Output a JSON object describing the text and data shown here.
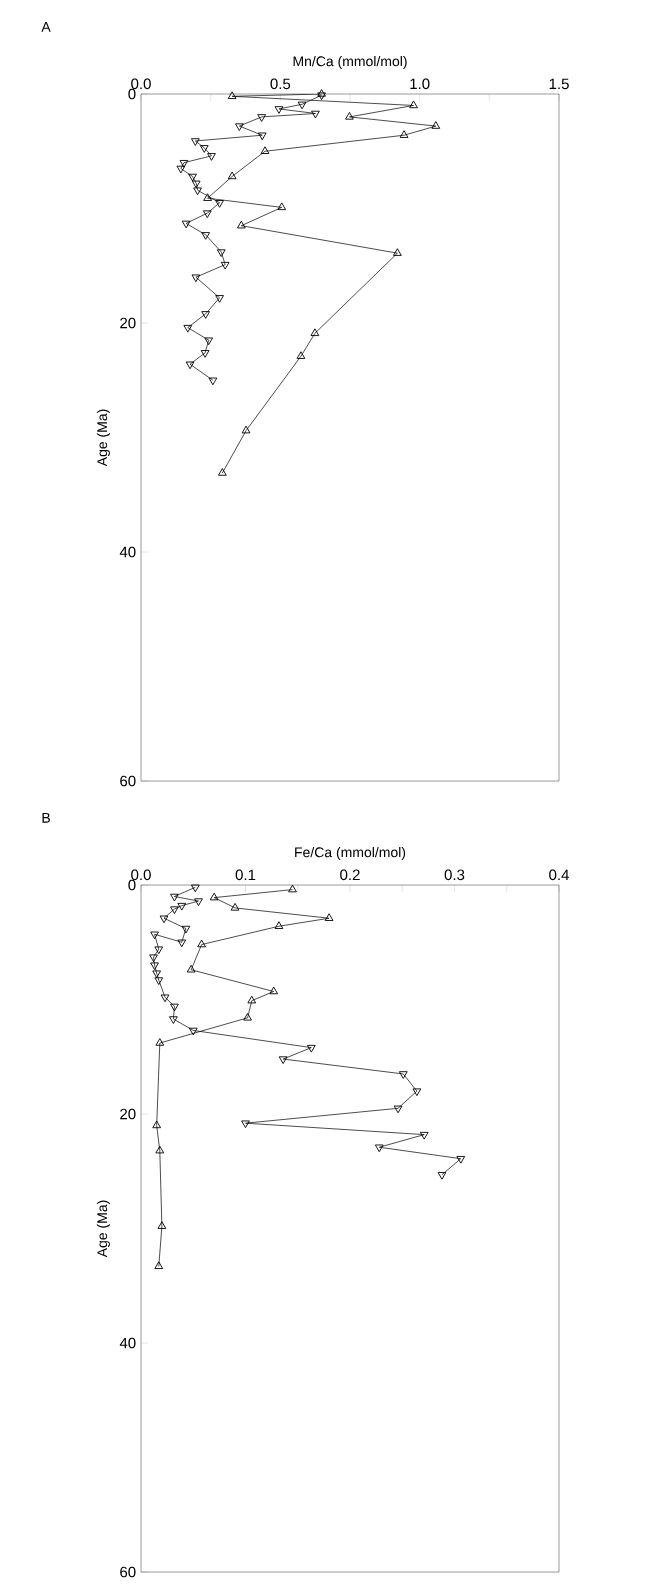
{
  "chart_data": [
    {
      "type": "line",
      "title": "A",
      "xlabel": "Mn/Ca (mmol/mol)",
      "ylabel": "Age (Ma)",
      "orientation": "horizontal",
      "xlim": [
        0,
        1.5
      ],
      "xticks": [
        {
          "value": 0,
          "label": "0.0"
        },
        {
          "value": 0.25,
          "label": null
        },
        {
          "value": 0.5,
          "label": "0.5"
        },
        {
          "value": 0.75,
          "label": null
        },
        {
          "value": 1,
          "label": "1.0"
        },
        {
          "value": 1.25,
          "label": null
        },
        {
          "value": 1.5,
          "label": "1.5"
        }
      ],
      "ylim": [
        60,
        0
      ],
      "yticks": [
        0,
        20,
        40,
        60
      ],
      "grid": false,
      "series": [
        {
          "color": "#000000",
          "marker": "triangle",
          "values": [
            0.648,
            0.327,
            0.978,
            0.748,
            1.058,
            0.944,
            0.445,
            0.327,
            0.239,
            0.505,
            0.36,
            0.92,
            0.624,
            0.574,
            0.377,
            0.292
          ],
          "x": [
            0.0,
            0.2,
            1.0,
            2.0,
            2.8,
            3.6,
            5.0,
            7.2,
            9.1,
            9.9,
            11.5,
            13.9,
            20.9,
            22.9,
            29.4,
            33.1
          ]
        },
        {
          "color": "#000000",
          "marker": "triangle-down",
          "values": [
            0.648,
            0.578,
            0.495,
            0.626,
            0.433,
            0.353,
            0.435,
            0.195,
            0.227,
            0.253,
            0.154,
            0.143,
            0.185,
            0.198,
            0.203,
            0.282,
            0.238,
            0.162,
            0.232,
            0.288,
            0.302,
            0.197,
            0.282,
            0.232,
            0.168,
            0.243,
            0.23,
            0.176,
            0.258
          ],
          "x": [
            0.1,
            0.9,
            1.3,
            1.7,
            2.0,
            2.8,
            3.6,
            4.1,
            4.7,
            5.4,
            6.0,
            6.5,
            7.2,
            7.8,
            8.4,
            9.5,
            10.4,
            11.3,
            12.3,
            13.8,
            14.9,
            16.0,
            17.8,
            19.2,
            20.4,
            21.5,
            22.6,
            23.6,
            25.0
          ]
        }
      ]
    },
    {
      "type": "line",
      "title": "B",
      "xlabel": "Fe/Ca (mmol/mol)",
      "ylabel": "Age (Ma)",
      "orientation": "horizontal",
      "xlim": [
        0,
        0.4
      ],
      "xticks": [
        {
          "value": 0,
          "label": "0.0"
        },
        {
          "value": 0.05,
          "label": null
        },
        {
          "value": 0.1,
          "label": "0.1"
        },
        {
          "value": 0.15,
          "label": null
        },
        {
          "value": 0.2,
          "label": "0.2"
        },
        {
          "value": 0.25,
          "label": null
        },
        {
          "value": 0.3,
          "label": "0.3"
        },
        {
          "value": 0.35,
          "label": null
        },
        {
          "value": 0.4,
          "label": "0.4"
        }
      ],
      "ylim": [
        60,
        0
      ],
      "yticks": [
        0,
        20,
        40,
        60
      ],
      "grid": false,
      "series": [
        {
          "color": "#000000",
          "marker": "triangle",
          "values": [
            0.145,
            0.07,
            0.09,
            0.18,
            0.132,
            0.058,
            0.048,
            0.127,
            0.106,
            0.102,
            0.018,
            0.015,
            0.018,
            0.02,
            0.017
          ],
          "x": [
            0.4,
            1.1,
            2.0,
            2.9,
            3.6,
            5.2,
            7.4,
            9.3,
            10.1,
            11.6,
            13.8,
            21.0,
            23.2,
            29.8,
            33.3
          ]
        },
        {
          "color": "#000000",
          "marker": "triangle-down",
          "values": [
            0.052,
            0.032,
            0.055,
            0.039,
            0.032,
            0.022,
            0.043,
            0.039,
            0.013,
            0.017,
            0.012,
            0.013,
            0.015,
            0.017,
            0.023,
            0.032,
            0.031,
            0.05,
            0.163,
            0.136,
            0.251,
            0.264,
            0.246,
            0.1,
            0.271,
            0.228,
            0.306,
            0.288
          ],
          "x": [
            0.2,
            1.0,
            1.4,
            1.8,
            2.1,
            2.9,
            3.8,
            5.0,
            4.3,
            5.6,
            6.3,
            7.0,
            7.7,
            8.3,
            9.8,
            10.6,
            11.7,
            12.7,
            14.2,
            15.2,
            16.5,
            18.0,
            19.5,
            20.8,
            21.8,
            22.9,
            23.9,
            25.3
          ]
        }
      ]
    }
  ]
}
